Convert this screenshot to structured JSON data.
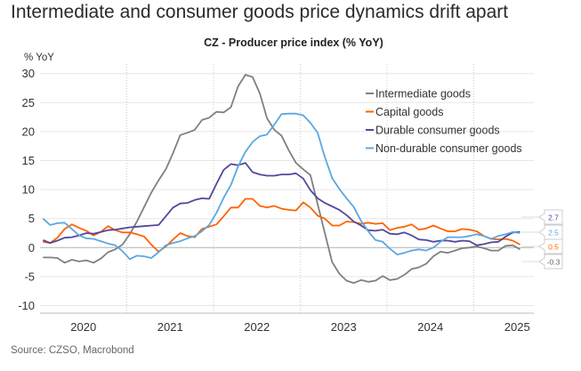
{
  "headline": "Intermediate and consumer goods price dynamics drift apart",
  "source": "Source: CZSO, Macrobond",
  "chart_data": {
    "type": "line",
    "title": "CZ - Producer price index (% YoY)",
    "ylabel": "% YoY",
    "xlabel": "",
    "ylim": [
      -10,
      30
    ],
    "yticks": [
      -10,
      -5,
      0,
      5,
      10,
      15,
      20,
      25,
      30
    ],
    "xticks": [
      "2020",
      "2021",
      "2022",
      "2023",
      "2024",
      "2025"
    ],
    "x_start": "2020-01",
    "x_frequency": "monthly",
    "grid": true,
    "legend_position": "top-right",
    "series": [
      {
        "name": "Intermediate goods",
        "color": "#808080",
        "last_label": "-0.3",
        "values": [
          -1.7,
          -1.7,
          -1.8,
          -2.6,
          -2.1,
          -2.4,
          -2.2,
          -2.6,
          -1.9,
          -0.8,
          -0.3,
          0.5,
          2.3,
          4.5,
          7.0,
          9.5,
          11.6,
          13.5,
          16.3,
          19.4,
          19.8,
          20.3,
          22.0,
          22.4,
          23.4,
          23.3,
          24.2,
          27.8,
          29.8,
          29.4,
          26.6,
          22.3,
          20.3,
          19.3,
          16.8,
          14.6,
          13.5,
          12.5,
          7.5,
          2.5,
          -2.5,
          -4.5,
          -5.7,
          -6.1,
          -5.6,
          -5.9,
          -5.7,
          -4.9,
          -5.6,
          -5.4,
          -4.7,
          -3.7,
          -3.4,
          -2.8,
          -1.5,
          -0.7,
          -0.9,
          -0.5,
          -0.1,
          0.0,
          0.2,
          -0.1,
          -0.5,
          -0.5,
          0.3,
          0.4,
          -0.3
        ]
      },
      {
        "name": "Capital goods",
        "color": "#ff6200",
        "last_label": "0.5",
        "values": [
          1.0,
          0.8,
          1.7,
          3.2,
          4.0,
          3.4,
          2.9,
          2.1,
          2.7,
          3.7,
          3.0,
          2.6,
          2.6,
          2.3,
          1.9,
          0.5,
          -0.7,
          0.2,
          1.4,
          2.5,
          2.0,
          1.8,
          3.2,
          3.6,
          4.0,
          5.4,
          6.9,
          6.9,
          8.4,
          8.4,
          7.2,
          6.9,
          7.2,
          6.7,
          6.5,
          6.4,
          7.8,
          6.9,
          5.5,
          5.0,
          3.8,
          3.8,
          4.5,
          4.4,
          4.1,
          4.3,
          4.1,
          4.2,
          3.0,
          3.4,
          3.6,
          4.0,
          3.1,
          3.3,
          3.8,
          3.3,
          2.8,
          2.8,
          3.2,
          3.1,
          2.8,
          2.0,
          1.5,
          1.4,
          1.5,
          1.2,
          0.5
        ]
      },
      {
        "name": "Durable consumer goods",
        "color": "#52489c",
        "last_label": "2.7",
        "values": [
          1.3,
          0.8,
          1.2,
          1.7,
          1.8,
          2.1,
          2.5,
          2.4,
          2.7,
          3.0,
          3.1,
          3.3,
          3.5,
          3.6,
          3.7,
          3.8,
          3.9,
          5.4,
          6.9,
          7.6,
          7.7,
          8.2,
          8.5,
          8.4,
          11.0,
          13.4,
          14.4,
          14.2,
          14.6,
          13.0,
          12.6,
          12.4,
          12.4,
          12.6,
          12.6,
          12.8,
          11.9,
          9.9,
          8.5,
          7.7,
          7.1,
          6.5,
          5.6,
          4.5,
          3.8,
          3.0,
          2.9,
          3.1,
          2.4,
          2.3,
          2.6,
          2.1,
          1.4,
          1.3,
          1.0,
          1.2,
          1.2,
          1.0,
          1.2,
          1.1,
          0.4,
          0.6,
          0.9,
          1.0,
          1.9,
          2.6,
          2.7
        ]
      },
      {
        "name": "Non-durable consumer goods",
        "color": "#5aa8e0",
        "last_label": "2.5",
        "values": [
          5.0,
          3.9,
          4.2,
          4.3,
          3.2,
          2.1,
          1.6,
          1.5,
          1.1,
          0.7,
          0.4,
          -0.6,
          -2.0,
          -1.4,
          -1.5,
          -1.8,
          -0.8,
          0.4,
          0.8,
          1.1,
          1.6,
          2.0,
          2.8,
          3.9,
          6.0,
          8.6,
          10.8,
          14.0,
          16.5,
          18.2,
          19.2,
          19.5,
          21.2,
          23.0,
          23.1,
          23.1,
          22.8,
          21.5,
          19.8,
          15.6,
          12.0,
          10.1,
          8.5,
          7.0,
          4.6,
          2.8,
          1.3,
          1.0,
          -0.2,
          -1.2,
          -0.9,
          -0.5,
          -0.3,
          -0.5,
          0.0,
          1.0,
          1.8,
          1.8,
          1.8,
          2.0,
          2.3,
          2.0,
          1.5,
          2.0,
          2.3,
          2.7,
          2.5
        ]
      }
    ]
  }
}
